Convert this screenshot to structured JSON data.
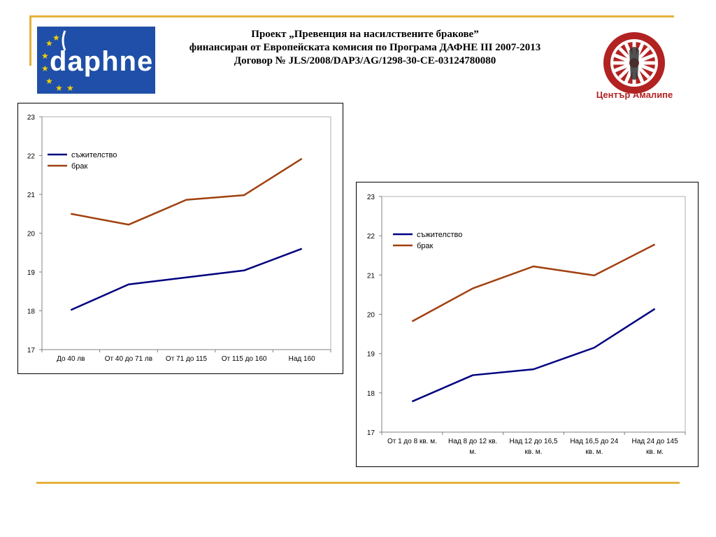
{
  "header": {
    "title_lines": [
      "Проект „Превенция на насилствените бракове”",
      "финансиран от Европейската комисия по Програма ДАФНЕ III 2007-2013",
      "Договор № JLS/2008/DAP3/AG/1298-30-CE-03124780080"
    ],
    "left_logo_text": "daphne",
    "right_logo_text": "Център Амалипе"
  },
  "colors": {
    "accent_gold": "#e6b23c",
    "series_cohabitation": "#000080",
    "series_marriage": "#a0400f",
    "daphne_blue": "#1f4fa8",
    "amalipe_red": "#b22222"
  },
  "chart_data": [
    {
      "type": "line",
      "categories": [
        "До 40 лв",
        "От 40 до 71 лв",
        "От 71 до 115",
        "От 115 до 160",
        "Над 160"
      ],
      "series": [
        {
          "name": "съжителство",
          "values": [
            18.02,
            18.68,
            18.86,
            19.04,
            19.6
          ]
        },
        {
          "name": "брак",
          "values": [
            20.5,
            20.22,
            20.86,
            20.98,
            21.92
          ]
        }
      ],
      "ylim": [
        17,
        23
      ],
      "yticks": [
        17,
        18,
        19,
        20,
        21,
        22,
        23
      ],
      "legend": "top-left",
      "grid": false,
      "title": "",
      "xlabel": "",
      "ylabel": ""
    },
    {
      "type": "line",
      "categories": [
        "От 1 до 8 кв. м.",
        "Над 8 до 12 кв. м.",
        "Над 12 до 16,5 кв. м.",
        "Над 16,5 до 24 кв. м.",
        "Над 24 до 145 кв. м."
      ],
      "series": [
        {
          "name": "съжителство",
          "values": [
            17.78,
            18.45,
            18.6,
            19.15,
            20.14
          ]
        },
        {
          "name": "брак",
          "values": [
            19.82,
            20.66,
            21.22,
            20.99,
            21.78
          ]
        }
      ],
      "ylim": [
        17,
        23
      ],
      "yticks": [
        17,
        18,
        19,
        20,
        21,
        22,
        23
      ],
      "legend": "top-left",
      "grid": false,
      "title": "",
      "xlabel": "",
      "ylabel": ""
    }
  ]
}
